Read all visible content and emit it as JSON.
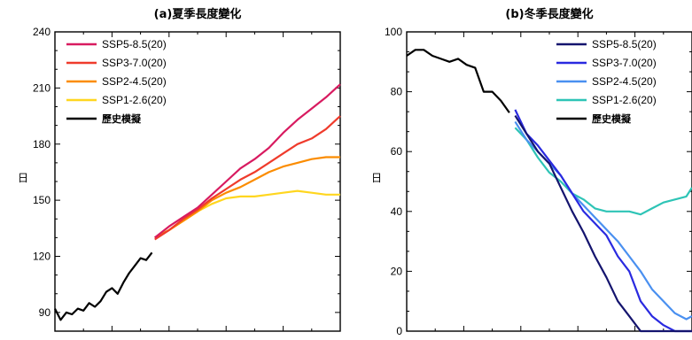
{
  "chart_data": [
    {
      "type": "line",
      "title": "(a)夏季長度變化",
      "ylabel": "日",
      "xlabel": "",
      "ylim": [
        80,
        240
      ],
      "yticks": [
        90,
        120,
        150,
        180,
        210,
        240
      ],
      "xlim": [
        0,
        100
      ],
      "grid": false,
      "legend_position": "top-left",
      "series": [
        {
          "name": "SSP5-8.5(20)",
          "color": "#d81b60",
          "x": [
            35,
            40,
            45,
            50,
            55,
            60,
            65,
            70,
            75,
            80,
            85,
            90,
            95,
            100
          ],
          "y": [
            130,
            136,
            141,
            146,
            153,
            160,
            167,
            172,
            178,
            186,
            193,
            199,
            205,
            212
          ]
        },
        {
          "name": "SSP3-7.0(20)",
          "color": "#ef3b2c",
          "x": [
            35,
            40,
            45,
            50,
            55,
            60,
            65,
            70,
            75,
            80,
            85,
            90,
            95,
            100
          ],
          "y": [
            129,
            134,
            140,
            145,
            151,
            156,
            161,
            165,
            170,
            175,
            180,
            183,
            188,
            195
          ]
        },
        {
          "name": "SSP2-4.5(20)",
          "color": "#fb8c00",
          "x": [
            35,
            40,
            45,
            50,
            55,
            60,
            65,
            70,
            75,
            80,
            85,
            90,
            95,
            100
          ],
          "y": [
            130,
            134,
            139,
            144,
            150,
            154,
            157,
            161,
            165,
            168,
            170,
            172,
            173,
            173
          ]
        },
        {
          "name": "SSP1-2.6(20)",
          "color": "#ffd61f",
          "x": [
            35,
            40,
            45,
            50,
            55,
            60,
            65,
            70,
            75,
            80,
            85,
            90,
            95,
            100
          ],
          "y": [
            130,
            134,
            139,
            144,
            148,
            151,
            152,
            152,
            153,
            154,
            155,
            154,
            153,
            153
          ]
        },
        {
          "name": "歷史模擬",
          "color": "#000000",
          "x": [
            0,
            2,
            4,
            6,
            8,
            10,
            12,
            14,
            16,
            18,
            20,
            22,
            24,
            26,
            28,
            30,
            32,
            34
          ],
          "y": [
            92,
            86,
            90,
            89,
            92,
            91,
            95,
            93,
            96,
            101,
            103,
            100,
            106,
            111,
            115,
            119,
            118,
            122
          ]
        }
      ]
    },
    {
      "type": "line",
      "title": "(b)冬季長度變化",
      "ylabel": "日",
      "xlabel": "",
      "ylim": [
        0,
        100
      ],
      "yticks": [
        0,
        20,
        40,
        60,
        80,
        100
      ],
      "xlim": [
        0,
        100
      ],
      "grid": false,
      "legend_position": "top-right",
      "series": [
        {
          "name": "SSP5-8.5(20)",
          "color": "#14146e",
          "x": [
            38,
            42,
            46,
            50,
            54,
            58,
            62,
            66,
            70,
            74,
            78,
            82,
            86,
            90,
            94,
            98,
            100
          ],
          "y": [
            72,
            66,
            60,
            56,
            48,
            40,
            33,
            25,
            18,
            10,
            5,
            0,
            0,
            0,
            0,
            0,
            0
          ]
        },
        {
          "name": "SSP3-7.0(20)",
          "color": "#2a2ae0",
          "x": [
            38,
            42,
            46,
            50,
            54,
            58,
            62,
            66,
            70,
            74,
            78,
            82,
            86,
            90,
            94,
            98,
            100
          ],
          "y": [
            74,
            66,
            62,
            57,
            52,
            46,
            40,
            36,
            32,
            25,
            20,
            10,
            5,
            2,
            0,
            0,
            0
          ]
        },
        {
          "name": "SSP2-4.5(20)",
          "color": "#4a90f0",
          "x": [
            38,
            42,
            46,
            50,
            54,
            58,
            62,
            66,
            70,
            74,
            78,
            82,
            86,
            90,
            94,
            98,
            100
          ],
          "y": [
            70,
            64,
            60,
            56,
            52,
            46,
            42,
            38,
            34,
            30,
            25,
            20,
            14,
            10,
            6,
            4,
            5
          ]
        },
        {
          "name": "SSP1-2.6(20)",
          "color": "#2ec4b6",
          "x": [
            38,
            42,
            46,
            50,
            54,
            58,
            62,
            66,
            70,
            74,
            78,
            82,
            86,
            90,
            94,
            98,
            100
          ],
          "y": [
            68,
            64,
            58,
            53,
            50,
            46,
            44,
            41,
            40,
            40,
            40,
            39,
            41,
            43,
            44,
            45,
            48
          ]
        },
        {
          "name": "歷史模擬",
          "color": "#000000",
          "x": [
            0,
            3,
            6,
            9,
            12,
            15,
            18,
            21,
            24,
            27,
            30,
            33,
            36
          ],
          "y": [
            92,
            94,
            94,
            92,
            91,
            90,
            91,
            89,
            88,
            80,
            80,
            77,
            73
          ]
        }
      ]
    }
  ]
}
